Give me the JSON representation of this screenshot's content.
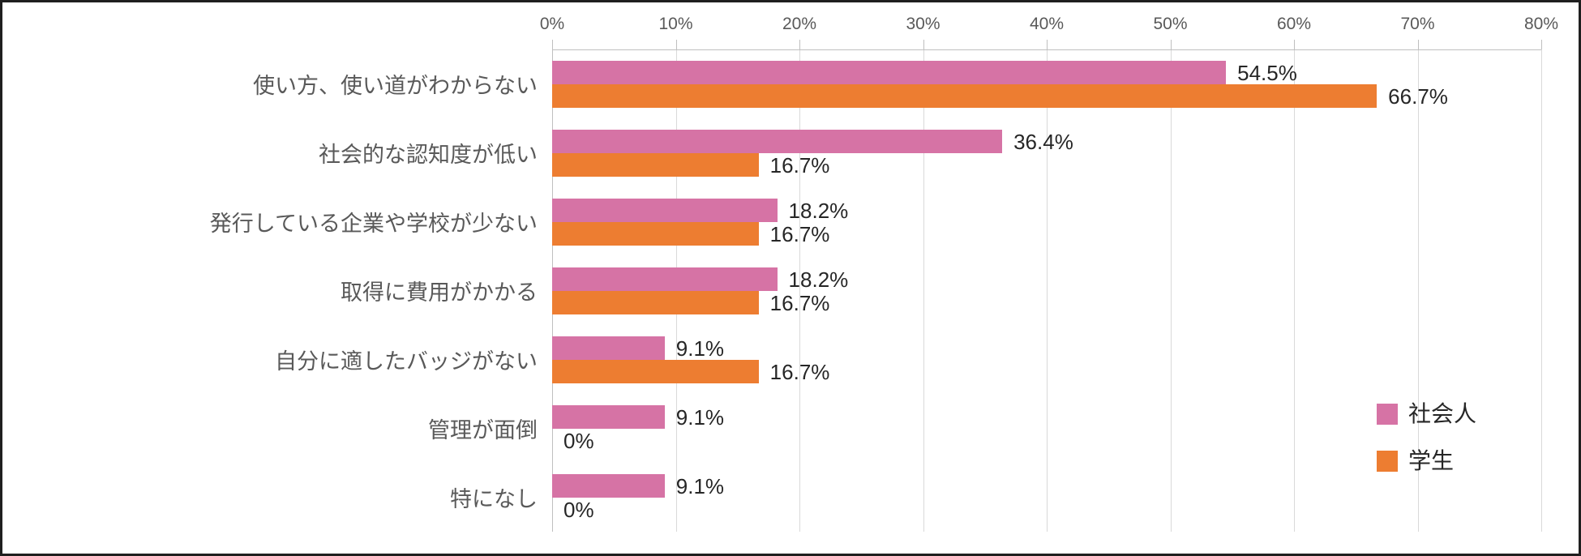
{
  "chart_data": {
    "type": "bar",
    "orientation": "horizontal",
    "title": "",
    "categories": [
      "使い方、使い道がわからない",
      "社会的な認知度が低い",
      "発行している企業や学校が少ない",
      "取得に費用がかかる",
      "自分に適したバッジがない",
      "管理が面倒",
      "特になし"
    ],
    "series": [
      {
        "name": "社会人",
        "color": "#D673A5",
        "values": [
          54.5,
          36.4,
          18.2,
          18.2,
          9.1,
          9.1,
          9.1
        ],
        "labels": [
          "54.5%",
          "36.4%",
          "18.2%",
          "18.2%",
          "9.1%",
          "9.1%",
          "9.1%"
        ]
      },
      {
        "name": "学生",
        "color": "#ED7D31",
        "values": [
          66.7,
          16.7,
          16.7,
          16.7,
          16.7,
          0,
          0
        ],
        "labels": [
          "66.7%",
          "16.7%",
          "16.7%",
          "16.7%",
          "16.7%",
          "0%",
          "0%"
        ]
      }
    ],
    "x_axis": {
      "position": "top",
      "min": 0,
      "max": 80,
      "tick_step": 10,
      "tick_labels": [
        "0%",
        "10%",
        "20%",
        "30%",
        "40%",
        "50%",
        "60%",
        "70%",
        "80%"
      ]
    },
    "legend": {
      "position": "right",
      "entries": [
        {
          "label": "社会人",
          "color": "#D673A5"
        },
        {
          "label": "学生",
          "color": "#ED7D31"
        }
      ]
    },
    "grid": true,
    "colors": {
      "grid": "#D9D9D9",
      "axis": "#BFBFBF",
      "tick_text": "#595959",
      "category_text": "#595959",
      "value_text": "#262626",
      "frame_border": "#1F1F1F",
      "background": "#FFFFFF"
    }
  }
}
